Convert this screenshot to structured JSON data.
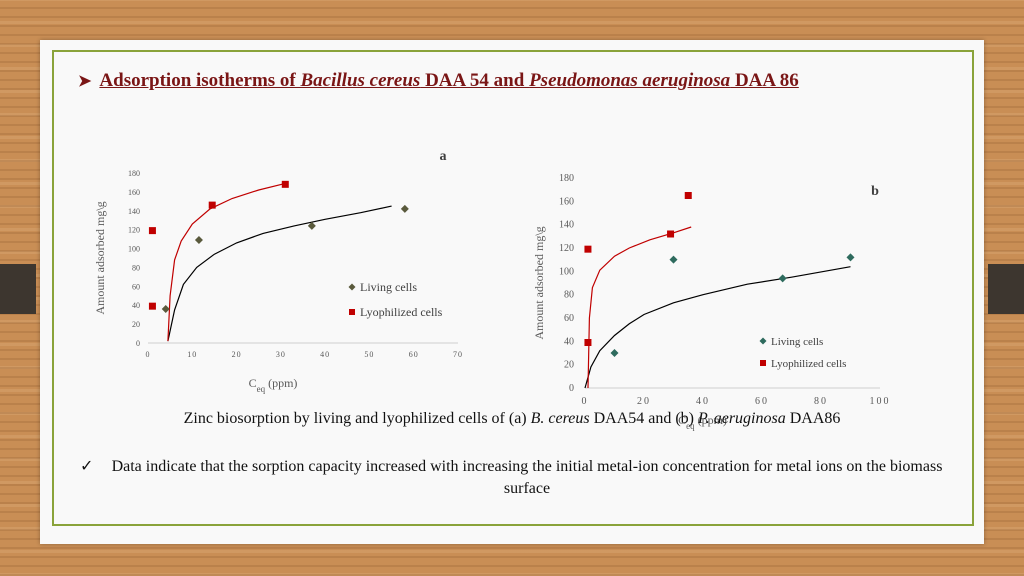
{
  "slide": {
    "title_prefix": "Adsorption isotherms of ",
    "title_species1": "Bacillus cereus",
    "title_mid": " DAA 54 and ",
    "title_species2": "Pseudomonas aeruginosa",
    "title_suffix": " DAA 86",
    "caption_prefix": "Zinc biosorption by living and lyophilized cells of (a) ",
    "caption_species1": "B. cereus",
    "caption_mid": " DAA54 and (b) ",
    "caption_species2": "P. aeruginosa",
    "caption_suffix": " DAA86",
    "note": "Data indicate that the sorption capacity increased with increasing the initial metal-ion concentration for metal ions on the biomass surface"
  },
  "colors": {
    "living": "#2e6b5e",
    "lyophilized": "#c00000",
    "living_a": "#5a5a3c",
    "fit_living": "#000000",
    "fit_lyo": "#c00000"
  },
  "chart_data": [
    {
      "type": "scatter",
      "panel_label": "a",
      "ylabel": "Amount adsorbed mg\\g",
      "xlabel_main": "C",
      "xlabel_sub": "eq",
      "xlabel_unit": " (ppm)",
      "xlim": [
        0,
        70
      ],
      "ylim": [
        0,
        180
      ],
      "xticks": [
        0,
        10,
        20,
        30,
        40,
        50,
        60,
        70
      ],
      "yticks": [
        0,
        20,
        40,
        60,
        80,
        100,
        120,
        140,
        160,
        180
      ],
      "legend_position": "center-right",
      "series": [
        {
          "name": "Living cells",
          "marker": "diamond",
          "points": [
            [
              4,
              36
            ],
            [
              11.5,
              109
            ],
            [
              37,
              124
            ],
            [
              58,
              142
            ]
          ]
        },
        {
          "name": "Lyophilized cells",
          "marker": "square",
          "points": [
            [
              1,
              39
            ],
            [
              1,
              119
            ],
            [
              14.5,
              146
            ],
            [
              31,
              168
            ]
          ]
        }
      ],
      "fits": [
        {
          "series": "Living cells",
          "points": [
            [
              4.5,
              2
            ],
            [
              6,
              35
            ],
            [
              8,
              62
            ],
            [
              11,
              80
            ],
            [
              15,
              94
            ],
            [
              20,
              106
            ],
            [
              26,
              116
            ],
            [
              33,
              124
            ],
            [
              40,
              131
            ],
            [
              48,
              138
            ],
            [
              55,
              145
            ]
          ]
        },
        {
          "series": "Lyophilized cells",
          "points": [
            [
              4.5,
              2
            ],
            [
              5,
              50
            ],
            [
              6,
              88
            ],
            [
              7.5,
              108
            ],
            [
              10,
              126
            ],
            [
              14,
              142
            ],
            [
              19,
              153
            ],
            [
              25,
              162
            ],
            [
              31,
              169
            ]
          ]
        }
      ]
    },
    {
      "type": "scatter",
      "panel_label": "b",
      "ylabel": "Amount adsorbed mg\\g",
      "xlabel_main": "C",
      "xlabel_sub": "eq",
      "xlabel_unit": " (ppm)",
      "xlim": [
        0,
        100
      ],
      "ylim": [
        0,
        180
      ],
      "xticks": [
        0,
        20,
        40,
        60,
        80,
        100
      ],
      "yticks": [
        0,
        20,
        40,
        60,
        80,
        100,
        120,
        140,
        160,
        180
      ],
      "legend_position": "center-right",
      "series": [
        {
          "name": "Living cells",
          "marker": "diamond",
          "points": [
            [
              10,
              30
            ],
            [
              30,
              110
            ],
            [
              67,
              94
            ],
            [
              90,
              112
            ]
          ]
        },
        {
          "name": "Lyophilized cells",
          "marker": "square",
          "points": [
            [
              1,
              39
            ],
            [
              1,
              119
            ],
            [
              29,
              132
            ],
            [
              35,
              165
            ]
          ]
        }
      ],
      "fits": [
        {
          "series": "Living cells",
          "points": [
            [
              0,
              0
            ],
            [
              2,
              18
            ],
            [
              5,
              32
            ],
            [
              10,
              45
            ],
            [
              15,
              55
            ],
            [
              20,
              63
            ],
            [
              30,
              73
            ],
            [
              40,
              80
            ],
            [
              55,
              89
            ],
            [
              70,
              95
            ],
            [
              90,
              104
            ]
          ]
        },
        {
          "series": "Lyophilized cells",
          "points": [
            [
              1,
              0
            ],
            [
              1.5,
              60
            ],
            [
              2.5,
              86
            ],
            [
              5,
              101
            ],
            [
              10,
              113
            ],
            [
              15,
              120
            ],
            [
              22,
              127
            ],
            [
              30,
              133
            ],
            [
              36,
              138
            ]
          ]
        }
      ]
    }
  ]
}
